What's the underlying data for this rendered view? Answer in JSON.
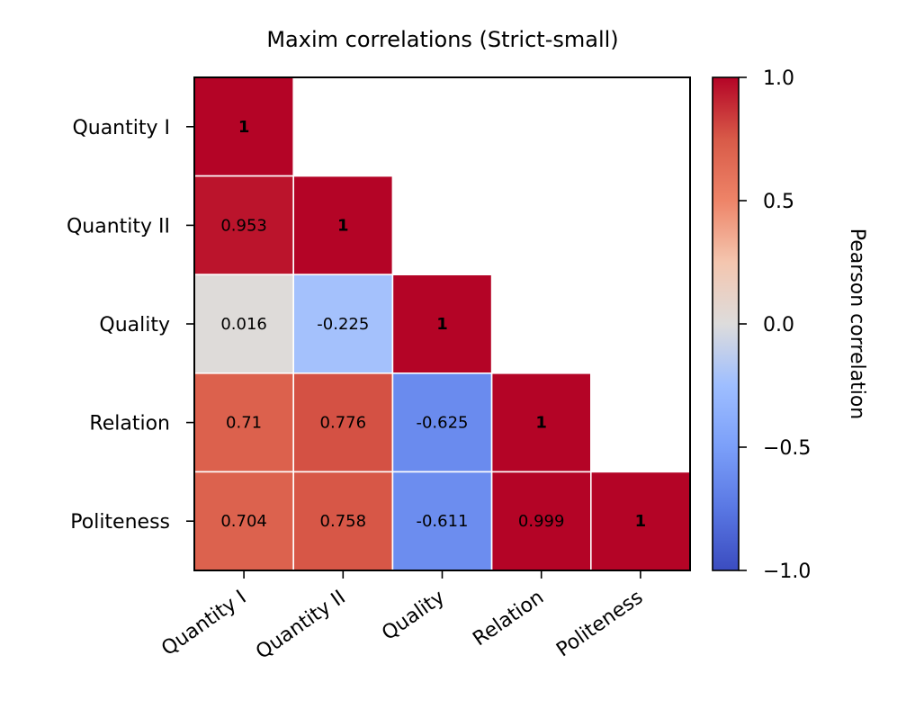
{
  "chart_data": {
    "type": "heatmap",
    "title": "Maxim correlations (Strict-small)",
    "row_labels": [
      "Quantity I",
      "Quantity II",
      "Quality",
      "Relation",
      "Politeness"
    ],
    "col_labels": [
      "Quantity I",
      "Quantity II",
      "Quality",
      "Relation",
      "Politeness"
    ],
    "cells": [
      {
        "row": 0,
        "col": 0,
        "value": 1,
        "label": "1",
        "diagonal": true
      },
      {
        "row": 1,
        "col": 0,
        "value": 0.953,
        "label": "0.953",
        "diagonal": false
      },
      {
        "row": 1,
        "col": 1,
        "value": 1,
        "label": "1",
        "diagonal": true
      },
      {
        "row": 2,
        "col": 0,
        "value": 0.016,
        "label": "0.016",
        "diagonal": false
      },
      {
        "row": 2,
        "col": 1,
        "value": -0.225,
        "label": "-0.225",
        "diagonal": false
      },
      {
        "row": 2,
        "col": 2,
        "value": 1,
        "label": "1",
        "diagonal": true
      },
      {
        "row": 3,
        "col": 0,
        "value": 0.71,
        "label": "0.71",
        "diagonal": false
      },
      {
        "row": 3,
        "col": 1,
        "value": 0.776,
        "label": "0.776",
        "diagonal": false
      },
      {
        "row": 3,
        "col": 2,
        "value": -0.625,
        "label": "-0.625",
        "diagonal": false
      },
      {
        "row": 3,
        "col": 3,
        "value": 1,
        "label": "1",
        "diagonal": true
      },
      {
        "row": 4,
        "col": 0,
        "value": 0.704,
        "label": "0.704",
        "diagonal": false
      },
      {
        "row": 4,
        "col": 1,
        "value": 0.758,
        "label": "0.758",
        "diagonal": false
      },
      {
        "row": 4,
        "col": 2,
        "value": -0.611,
        "label": "-0.611",
        "diagonal": false
      },
      {
        "row": 4,
        "col": 3,
        "value": 0.999,
        "label": "0.999",
        "diagonal": false
      },
      {
        "row": 4,
        "col": 4,
        "value": 1,
        "label": "1",
        "diagonal": true
      }
    ],
    "colorbar": {
      "label": "Pearson correlation",
      "vmin": -1.0,
      "vmax": 1.0,
      "colormap": "coolwarm",
      "ticks": [
        {
          "value": 1.0,
          "label": "1.0"
        },
        {
          "value": 0.5,
          "label": "0.5"
        },
        {
          "value": 0.0,
          "label": "0.0"
        },
        {
          "value": -0.5,
          "label": "−0.5"
        },
        {
          "value": -1.0,
          "label": "−1.0"
        }
      ]
    }
  }
}
